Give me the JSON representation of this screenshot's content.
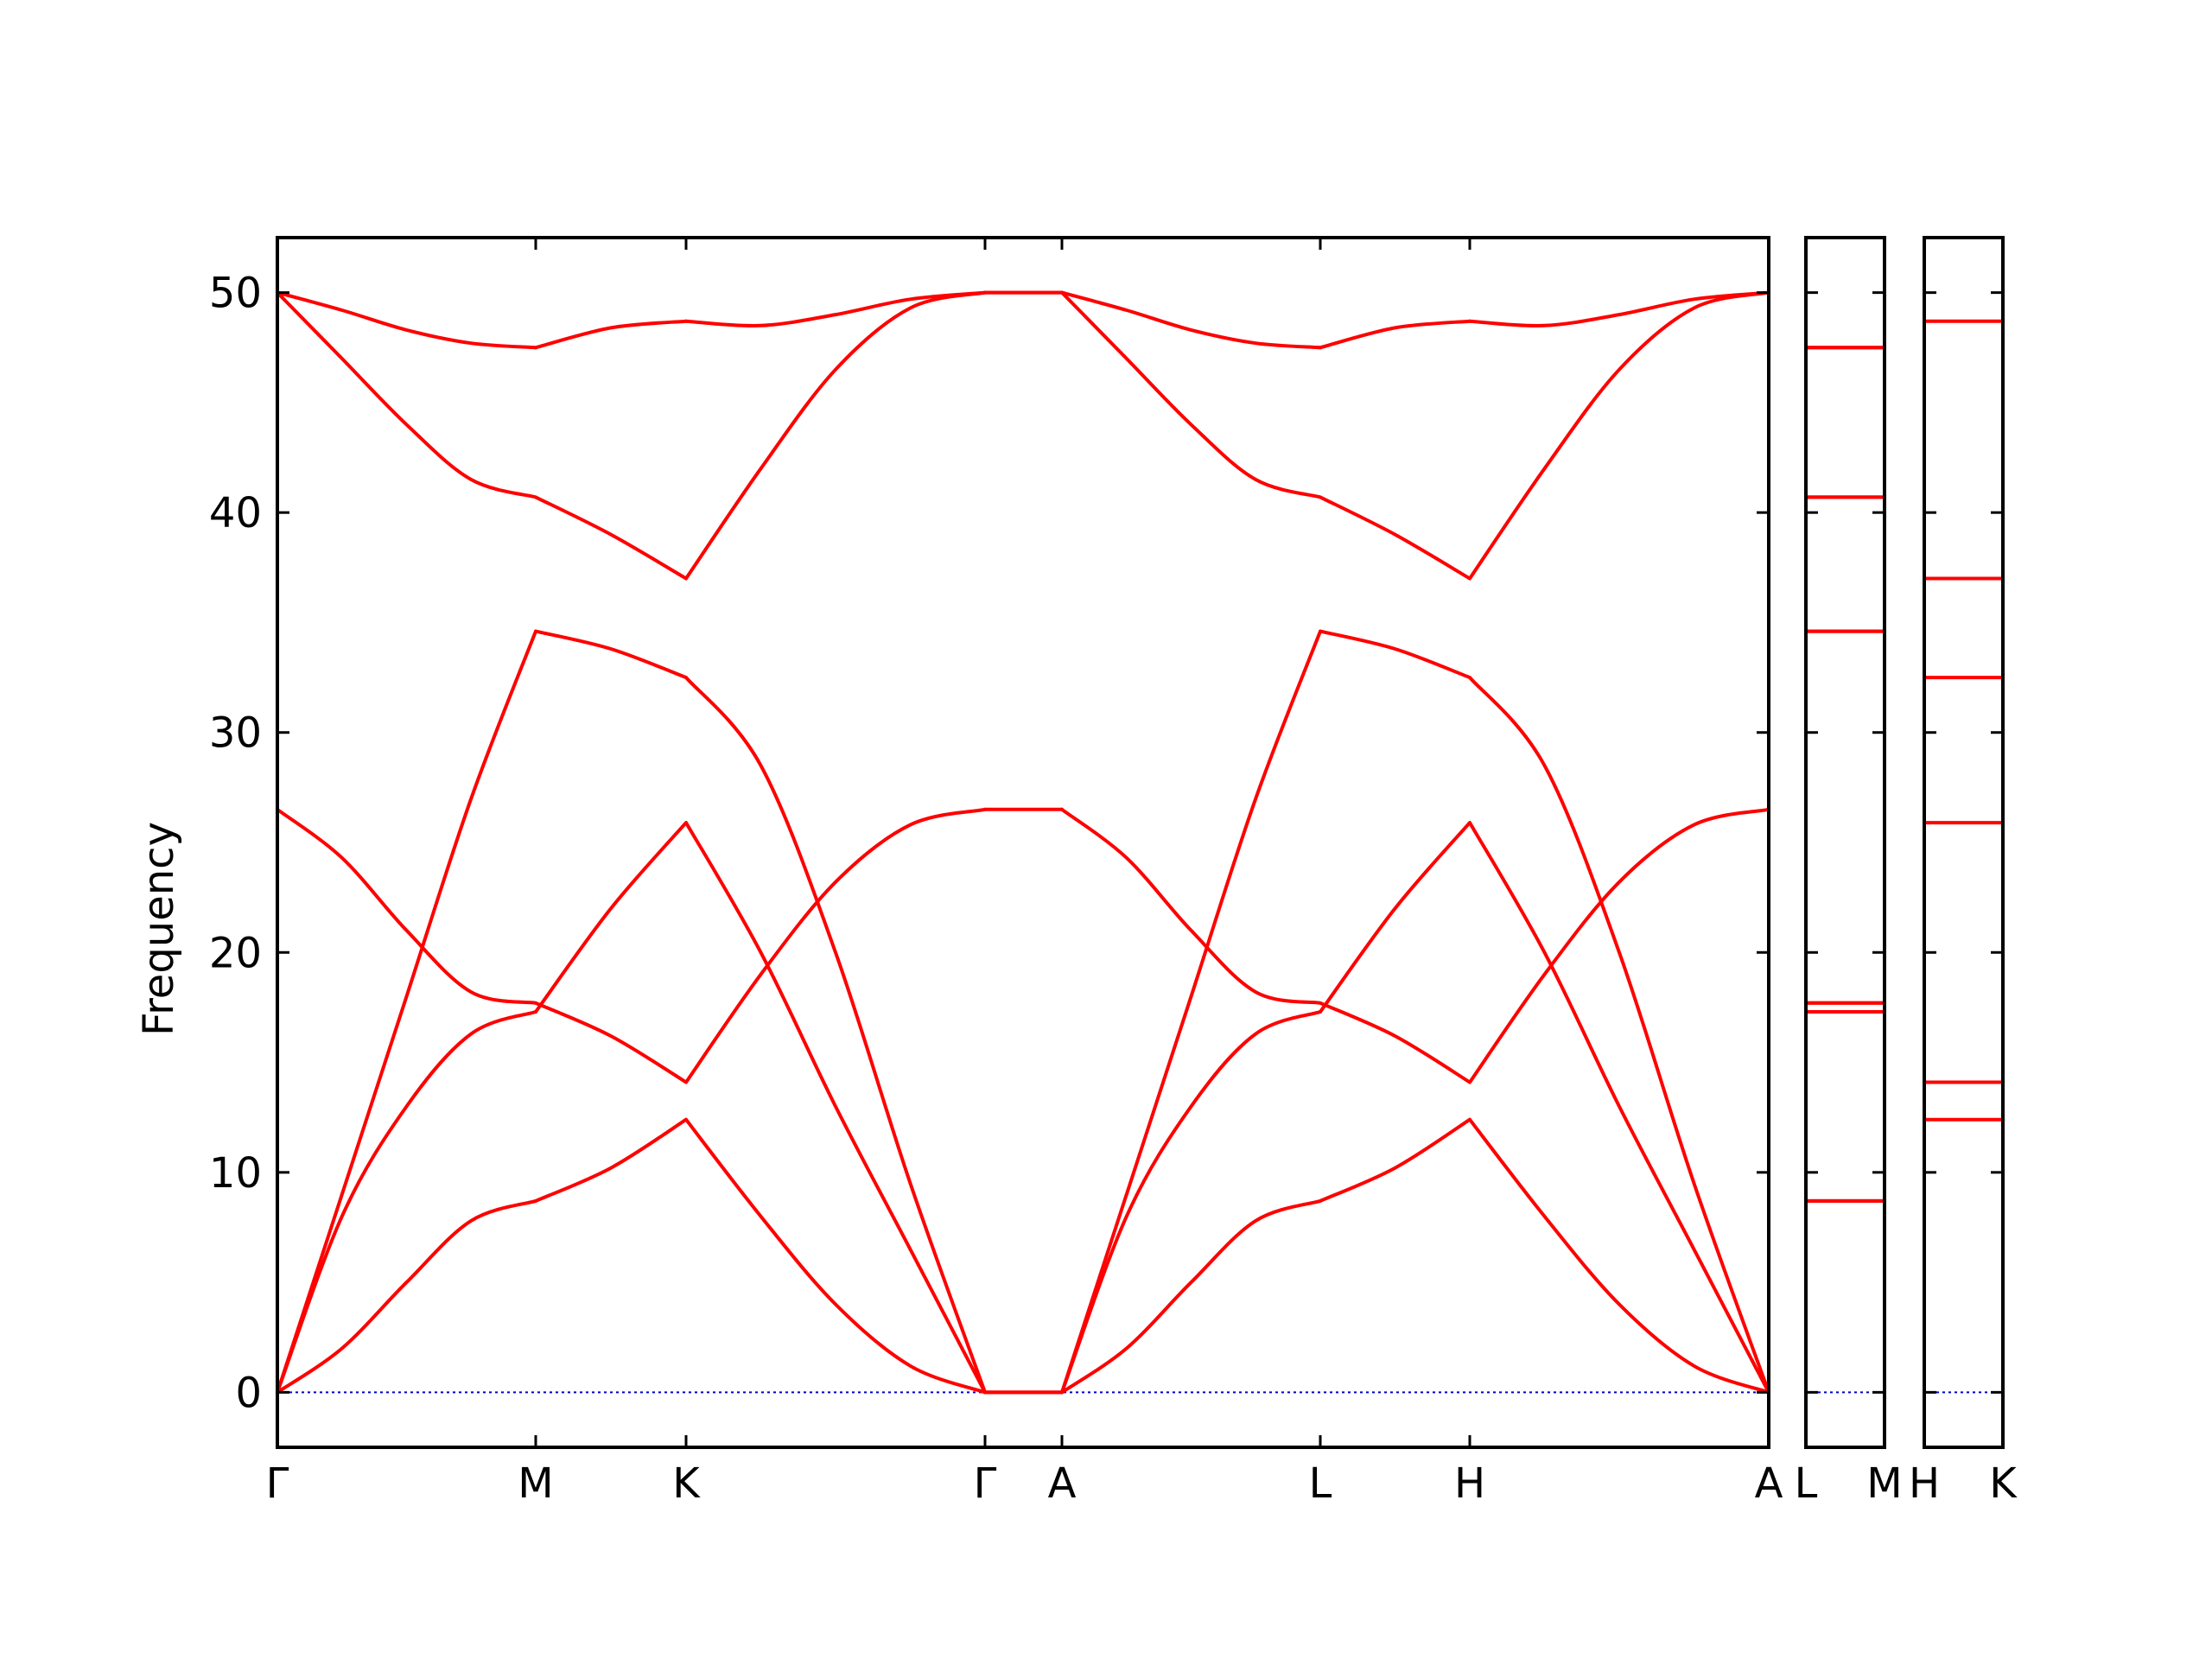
{
  "chart_data": {
    "type": "line",
    "title": "",
    "ylabel": "Frequency",
    "xlabel": "",
    "ylim": [
      -2.5,
      52.5
    ],
    "yticks": [
      0,
      10,
      20,
      30,
      40,
      50
    ],
    "grid": false,
    "colors": {
      "band": "#ff0000",
      "zero_line": "#0000cc",
      "axes": "#000000"
    },
    "panels": [
      {
        "labels": [
          "Γ",
          "M",
          "K",
          "Γ",
          "A",
          "L",
          "H",
          "A"
        ],
        "segments": [
          {
            "from": "Γ",
            "to": "M",
            "x": [
              0,
              0.25,
              0.5,
              0.75,
              1
            ],
            "series": [
              {
                "values": [
                  0,
                  2.0,
                  5.0,
                  7.8,
                  8.7
                ]
              },
              {
                "values": [
                  0,
                  8.0,
                  13.0,
                  16.3,
                  17.3
                ]
              },
              {
                "values": [
                  0,
                  9.0,
                  18.0,
                  27.0,
                  34.6
                ]
              },
              {
                "values": [
                  26.5,
                  24.3,
                  21.0,
                  18.2,
                  17.7
                ]
              },
              {
                "values": [
                  50.0,
                  47.0,
                  44.0,
                  41.5,
                  40.7
                ]
              },
              {
                "values": [
                  50.0,
                  49.2,
                  48.3,
                  47.7,
                  47.5
                ]
              }
            ]
          },
          {
            "from": "M",
            "to": "K",
            "x": [
              0,
              0.5,
              1
            ],
            "series": [
              {
                "values": [
                  8.7,
                  10.2,
                  12.4
                ]
              },
              {
                "values": [
                  17.3,
                  22.0,
                  25.9
                ]
              },
              {
                "values": [
                  34.6,
                  33.8,
                  32.5
                ]
              },
              {
                "values": [
                  17.7,
                  16.2,
                  14.1
                ]
              },
              {
                "values": [
                  40.7,
                  39.0,
                  37.0
                ]
              },
              {
                "values": [
                  47.5,
                  48.4,
                  48.7
                ]
              }
            ]
          },
          {
            "from": "K",
            "to": "Γ",
            "x": [
              0,
              0.25,
              0.5,
              0.75,
              1
            ],
            "series": [
              {
                "values": [
                  12.4,
                  8.0,
                  4.0,
                  1.2,
                  0
                ]
              },
              {
                "values": [
                  25.9,
                  20.0,
                  13.0,
                  6.5,
                  0
                ]
              },
              {
                "values": [
                  32.5,
                  28.5,
                  20.0,
                  9.5,
                  0
                ]
              },
              {
                "values": [
                  14.1,
                  19.0,
                  23.2,
                  25.8,
                  26.5
                ]
              },
              {
                "values": [
                  37.0,
                  42.0,
                  46.5,
                  49.3,
                  50.0
                ]
              },
              {
                "values": [
                  48.7,
                  48.5,
                  49.0,
                  49.7,
                  50.0
                ]
              }
            ]
          },
          {
            "from": "Γ",
            "to": "A",
            "x": [
              0,
              1
            ],
            "series": [
              {
                "values": [
                  0,
                  0
                ]
              },
              {
                "values": [
                  0,
                  0
                ]
              },
              {
                "values": [
                  0,
                  0
                ]
              },
              {
                "values": [
                  26.5,
                  26.5
                ]
              },
              {
                "values": [
                  50.0,
                  50.0
                ]
              },
              {
                "values": [
                  50.0,
                  50.0
                ]
              }
            ]
          },
          {
            "from": "A",
            "to": "L",
            "x": [
              0,
              0.25,
              0.5,
              0.75,
              1
            ],
            "series": [
              {
                "values": [
                  0,
                  2.0,
                  5.0,
                  7.8,
                  8.7
                ]
              },
              {
                "values": [
                  0,
                  8.0,
                  13.0,
                  16.3,
                  17.3
                ]
              },
              {
                "values": [
                  0,
                  9.0,
                  18.0,
                  27.0,
                  34.6
                ]
              },
              {
                "values": [
                  26.5,
                  24.3,
                  21.0,
                  18.2,
                  17.7
                ]
              },
              {
                "values": [
                  50.0,
                  47.0,
                  44.0,
                  41.5,
                  40.7
                ]
              },
              {
                "values": [
                  50.0,
                  49.2,
                  48.3,
                  47.7,
                  47.5
                ]
              }
            ]
          },
          {
            "from": "L",
            "to": "H",
            "x": [
              0,
              0.5,
              1
            ],
            "series": [
              {
                "values": [
                  8.7,
                  10.2,
                  12.4
                ]
              },
              {
                "values": [
                  17.3,
                  22.0,
                  25.9
                ]
              },
              {
                "values": [
                  34.6,
                  33.8,
                  32.5
                ]
              },
              {
                "values": [
                  17.7,
                  16.2,
                  14.1
                ]
              },
              {
                "values": [
                  40.7,
                  39.0,
                  37.0
                ]
              },
              {
                "values": [
                  47.5,
                  48.4,
                  48.7
                ]
              }
            ]
          },
          {
            "from": "H",
            "to": "A",
            "x": [
              0,
              0.25,
              0.5,
              0.75,
              1
            ],
            "series": [
              {
                "values": [
                  12.4,
                  8.0,
                  4.0,
                  1.2,
                  0
                ]
              },
              {
                "values": [
                  25.9,
                  20.0,
                  13.0,
                  6.5,
                  0
                ]
              },
              {
                "values": [
                  32.5,
                  28.5,
                  20.0,
                  9.5,
                  0
                ]
              },
              {
                "values": [
                  14.1,
                  19.0,
                  23.2,
                  25.8,
                  26.5
                ]
              },
              {
                "values": [
                  37.0,
                  42.0,
                  46.5,
                  49.3,
                  50.0
                ]
              },
              {
                "values": [
                  48.7,
                  48.5,
                  49.0,
                  49.7,
                  50.0
                ]
              }
            ]
          }
        ]
      },
      {
        "labels": [
          "L",
          "M"
        ],
        "segments": [
          {
            "from": "L",
            "to": "M",
            "x": [
              0,
              1
            ],
            "series": [
              {
                "values": [
                  8.7,
                  8.7
                ]
              },
              {
                "values": [
                  8.7,
                  8.7
                ]
              },
              {
                "values": [
                  17.3,
                  17.3
                ]
              },
              {
                "values": [
                  17.3,
                  17.3
                ]
              },
              {
                "values": [
                  17.7,
                  17.7
                ]
              },
              {
                "values": [
                  17.7,
                  17.7
                ]
              },
              {
                "values": [
                  34.6,
                  34.6
                ]
              },
              {
                "values": [
                  34.6,
                  34.6
                ]
              },
              {
                "values": [
                  40.7,
                  40.7
                ]
              },
              {
                "values": [
                  40.7,
                  40.7
                ]
              },
              {
                "values": [
                  47.5,
                  47.5
                ]
              },
              {
                "values": [
                  47.5,
                  47.5
                ]
              }
            ]
          }
        ]
      },
      {
        "labels": [
          "H",
          "K"
        ],
        "segments": [
          {
            "from": "H",
            "to": "K",
            "x": [
              0,
              1
            ],
            "series": [
              {
                "values": [
                  12.4,
                  12.4
                ]
              },
              {
                "values": [
                  14.1,
                  14.1
                ]
              },
              {
                "values": [
                  25.9,
                  25.9
                ]
              },
              {
                "values": [
                  32.5,
                  32.5
                ]
              },
              {
                "values": [
                  37.0,
                  37.0
                ]
              },
              {
                "values": [
                  48.7,
                  48.7
                ]
              }
            ]
          }
        ]
      }
    ]
  }
}
